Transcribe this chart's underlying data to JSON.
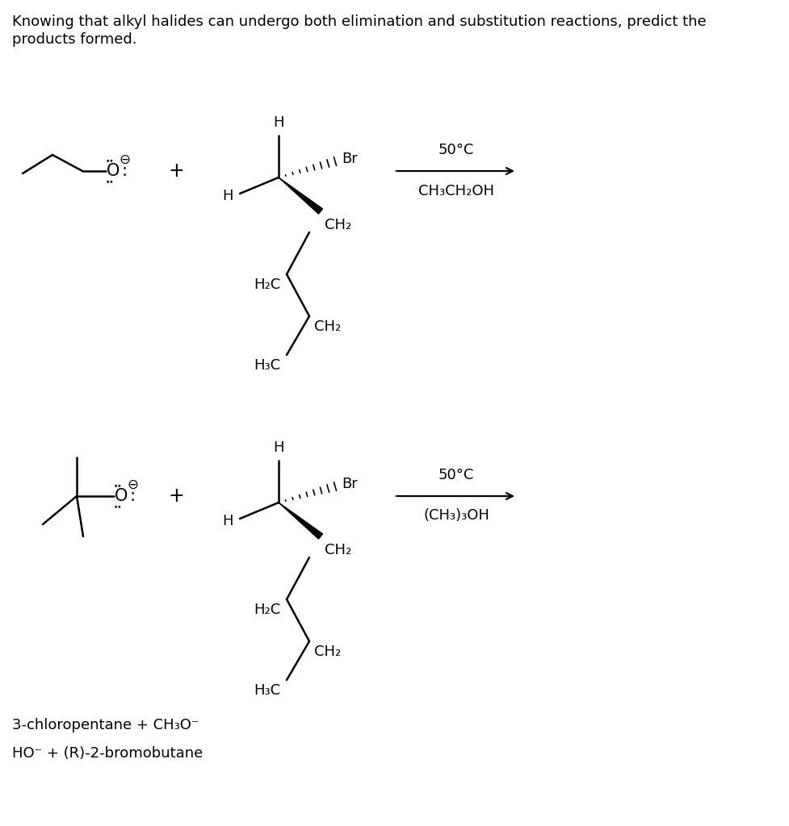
{
  "title_line1": "Knowing that alkyl halides can undergo both elimination and substitution reactions, predict the",
  "title_line2": "products formed.",
  "background_color": "#ffffff",
  "text_color": "#000000",
  "footer_line1": "3-chloropentane + CH₃O⁻",
  "footer_line2": "HO⁻ + (R)-2-bromobutane",
  "reaction1_conditions_top": "50°C",
  "reaction1_conditions_bottom": "CH₃CH₂OH",
  "reaction2_conditions_top": "50°C",
  "reaction2_conditions_bottom": "(CH₃)₃OH",
  "font_size": 13
}
